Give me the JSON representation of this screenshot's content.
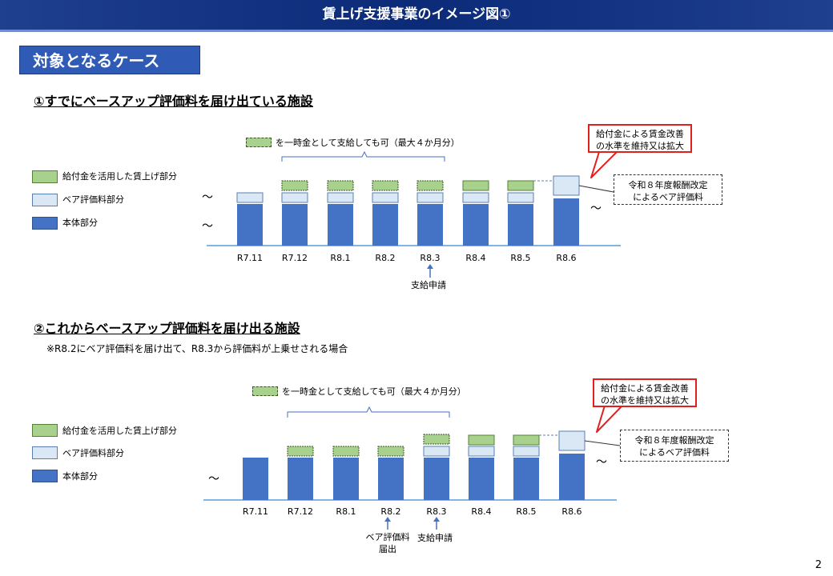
{
  "title": "賃上げ支援事業のイメージ図①",
  "case_label": "対象となるケース",
  "page_number": "2",
  "legend": {
    "raise_part": "給付金を活用した賃上げ部分",
    "baseup_part": "ベア評価料部分",
    "main_part": "本体部分"
  },
  "section1": {
    "heading": "①すでにベースアップ評価料を届け出ている施設",
    "lump_sum_note": "を一時金として支給しても可（最大４か月分）",
    "months": [
      "R7.11",
      "R7.12",
      "R8.1",
      "R8.2",
      "R8.3",
      "R8.4",
      "R8.5",
      "R8.6"
    ],
    "apply_label": "支給申請",
    "callout_red": "給付金による賃金改善\nの水準を維持又は拡大",
    "callout_dash": "令和８年度報酬改定\nによるベア評価料",
    "tilde": "～"
  },
  "section2": {
    "heading": "②これからベースアップ評価料を届け出る施設",
    "subnote": "※R8.2にベア評価料を届け出て、R8.3から評価料が上乗せされる場合",
    "lump_sum_note": "を一時金として支給しても可（最大４か月分）",
    "months": [
      "R7.11",
      "R7.12",
      "R8.1",
      "R8.2",
      "R8.3",
      "R8.4",
      "R8.5",
      "R8.6"
    ],
    "filing_label": "ベア評価料\n届出",
    "apply_label": "支給申請",
    "callout_red": "給付金による賃金改善\nの水準を維持又は拡大",
    "callout_dash": "令和８年度報酬改定\nによるベア評価料",
    "tilde": "～"
  }
}
